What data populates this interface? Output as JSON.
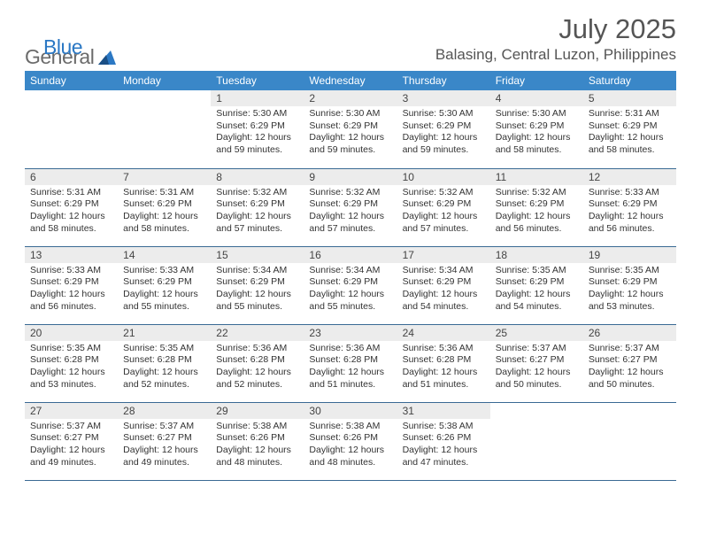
{
  "brand": {
    "name_a": "General",
    "name_b": "Blue"
  },
  "title": "July 2025",
  "location": "Balasing, Central Luzon, Philippines",
  "colors": {
    "header_bg": "#3a87c8",
    "header_text": "#ffffff",
    "daynum_bg": "#ececec",
    "row_border": "#3a6a94",
    "brand_gray": "#6b6b6b",
    "brand_blue": "#2b78c4",
    "text": "#333333",
    "title_gray": "#555555"
  },
  "weekdays": [
    "Sunday",
    "Monday",
    "Tuesday",
    "Wednesday",
    "Thursday",
    "Friday",
    "Saturday"
  ],
  "weeks": [
    [
      null,
      null,
      {
        "d": "1",
        "sr": "5:30 AM",
        "ss": "6:29 PM",
        "dl": "12 hours and 59 minutes."
      },
      {
        "d": "2",
        "sr": "5:30 AM",
        "ss": "6:29 PM",
        "dl": "12 hours and 59 minutes."
      },
      {
        "d": "3",
        "sr": "5:30 AM",
        "ss": "6:29 PM",
        "dl": "12 hours and 59 minutes."
      },
      {
        "d": "4",
        "sr": "5:30 AM",
        "ss": "6:29 PM",
        "dl": "12 hours and 58 minutes."
      },
      {
        "d": "5",
        "sr": "5:31 AM",
        "ss": "6:29 PM",
        "dl": "12 hours and 58 minutes."
      }
    ],
    [
      {
        "d": "6",
        "sr": "5:31 AM",
        "ss": "6:29 PM",
        "dl": "12 hours and 58 minutes."
      },
      {
        "d": "7",
        "sr": "5:31 AM",
        "ss": "6:29 PM",
        "dl": "12 hours and 58 minutes."
      },
      {
        "d": "8",
        "sr": "5:32 AM",
        "ss": "6:29 PM",
        "dl": "12 hours and 57 minutes."
      },
      {
        "d": "9",
        "sr": "5:32 AM",
        "ss": "6:29 PM",
        "dl": "12 hours and 57 minutes."
      },
      {
        "d": "10",
        "sr": "5:32 AM",
        "ss": "6:29 PM",
        "dl": "12 hours and 57 minutes."
      },
      {
        "d": "11",
        "sr": "5:32 AM",
        "ss": "6:29 PM",
        "dl": "12 hours and 56 minutes."
      },
      {
        "d": "12",
        "sr": "5:33 AM",
        "ss": "6:29 PM",
        "dl": "12 hours and 56 minutes."
      }
    ],
    [
      {
        "d": "13",
        "sr": "5:33 AM",
        "ss": "6:29 PM",
        "dl": "12 hours and 56 minutes."
      },
      {
        "d": "14",
        "sr": "5:33 AM",
        "ss": "6:29 PM",
        "dl": "12 hours and 55 minutes."
      },
      {
        "d": "15",
        "sr": "5:34 AM",
        "ss": "6:29 PM",
        "dl": "12 hours and 55 minutes."
      },
      {
        "d": "16",
        "sr": "5:34 AM",
        "ss": "6:29 PM",
        "dl": "12 hours and 55 minutes."
      },
      {
        "d": "17",
        "sr": "5:34 AM",
        "ss": "6:29 PM",
        "dl": "12 hours and 54 minutes."
      },
      {
        "d": "18",
        "sr": "5:35 AM",
        "ss": "6:29 PM",
        "dl": "12 hours and 54 minutes."
      },
      {
        "d": "19",
        "sr": "5:35 AM",
        "ss": "6:29 PM",
        "dl": "12 hours and 53 minutes."
      }
    ],
    [
      {
        "d": "20",
        "sr": "5:35 AM",
        "ss": "6:28 PM",
        "dl": "12 hours and 53 minutes."
      },
      {
        "d": "21",
        "sr": "5:35 AM",
        "ss": "6:28 PM",
        "dl": "12 hours and 52 minutes."
      },
      {
        "d": "22",
        "sr": "5:36 AM",
        "ss": "6:28 PM",
        "dl": "12 hours and 52 minutes."
      },
      {
        "d": "23",
        "sr": "5:36 AM",
        "ss": "6:28 PM",
        "dl": "12 hours and 51 minutes."
      },
      {
        "d": "24",
        "sr": "5:36 AM",
        "ss": "6:28 PM",
        "dl": "12 hours and 51 minutes."
      },
      {
        "d": "25",
        "sr": "5:37 AM",
        "ss": "6:27 PM",
        "dl": "12 hours and 50 minutes."
      },
      {
        "d": "26",
        "sr": "5:37 AM",
        "ss": "6:27 PM",
        "dl": "12 hours and 50 minutes."
      }
    ],
    [
      {
        "d": "27",
        "sr": "5:37 AM",
        "ss": "6:27 PM",
        "dl": "12 hours and 49 minutes."
      },
      {
        "d": "28",
        "sr": "5:37 AM",
        "ss": "6:27 PM",
        "dl": "12 hours and 49 minutes."
      },
      {
        "d": "29",
        "sr": "5:38 AM",
        "ss": "6:26 PM",
        "dl": "12 hours and 48 minutes."
      },
      {
        "d": "30",
        "sr": "5:38 AM",
        "ss": "6:26 PM",
        "dl": "12 hours and 48 minutes."
      },
      {
        "d": "31",
        "sr": "5:38 AM",
        "ss": "6:26 PM",
        "dl": "12 hours and 47 minutes."
      },
      null,
      null
    ]
  ],
  "labels": {
    "sunrise": "Sunrise: ",
    "sunset": "Sunset: ",
    "daylight": "Daylight: "
  }
}
